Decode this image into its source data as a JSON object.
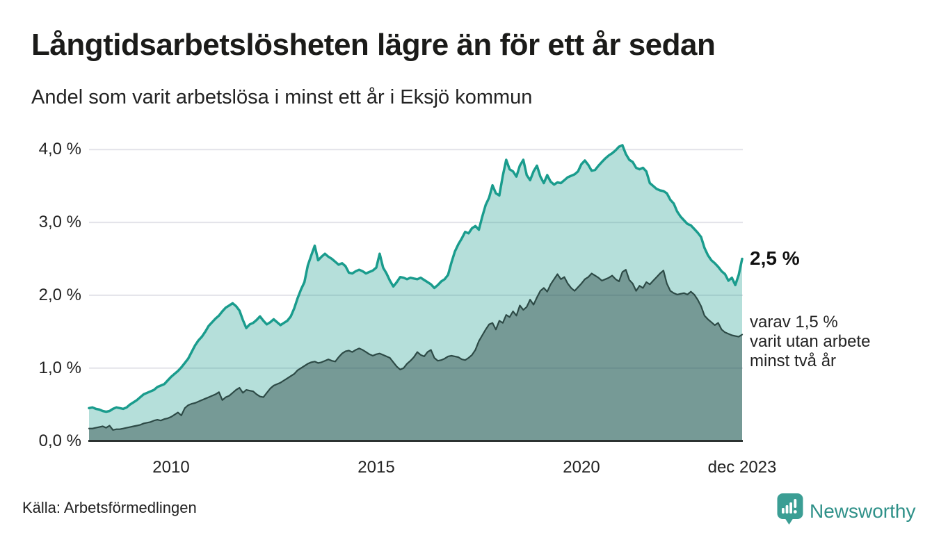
{
  "header": {
    "title": "Långtidsarbetslösheten lägre än för ett år sedan",
    "subtitle": "Andel som varit arbetslösa i minst ett år i Eksjö kommun"
  },
  "chart_data": {
    "type": "area",
    "title": "Långtidsarbetslösheten lägre än för ett år sedan",
    "subtitle": "Andel som varit arbetslösa i minst ett år i Eksjö kommun",
    "x_unit": "month",
    "x_start": "2008-01",
    "x_end": "2023-12",
    "ylim": [
      0,
      4.2
    ],
    "grid": true,
    "y_ticks": [
      {
        "label": "4,0 %",
        "value": 4.0
      },
      {
        "label": "3,0 %",
        "value": 3.0
      },
      {
        "label": "2,0 %",
        "value": 2.0
      },
      {
        "label": "1,0 %",
        "value": 1.0
      },
      {
        "label": "0,0 %",
        "value": 0.0
      }
    ],
    "x_ticks": [
      {
        "label": "2010",
        "month_index": 24
      },
      {
        "label": "2015",
        "month_index": 84
      },
      {
        "label": "2020",
        "month_index": 144
      },
      {
        "label": "dec 2023",
        "month_index": 191
      }
    ],
    "series": [
      {
        "name": "Andel som varit arbetslösa i minst ett år",
        "line_color": "#1a9c8d",
        "fill_color": "rgba(26,156,141,0.32)",
        "line_width": 3.5,
        "values": [
          0.45,
          0.46,
          0.44,
          0.43,
          0.41,
          0.4,
          0.41,
          0.44,
          0.46,
          0.45,
          0.44,
          0.46,
          0.5,
          0.53,
          0.56,
          0.6,
          0.64,
          0.66,
          0.68,
          0.7,
          0.74,
          0.76,
          0.78,
          0.83,
          0.88,
          0.92,
          0.96,
          1.01,
          1.07,
          1.13,
          1.22,
          1.31,
          1.38,
          1.43,
          1.5,
          1.58,
          1.63,
          1.68,
          1.72,
          1.78,
          1.83,
          1.86,
          1.89,
          1.85,
          1.79,
          1.66,
          1.55,
          1.6,
          1.62,
          1.66,
          1.71,
          1.65,
          1.6,
          1.63,
          1.67,
          1.63,
          1.59,
          1.62,
          1.65,
          1.71,
          1.82,
          1.96,
          2.08,
          2.18,
          2.41,
          2.55,
          2.68,
          2.48,
          2.53,
          2.57,
          2.53,
          2.5,
          2.46,
          2.42,
          2.44,
          2.4,
          2.31,
          2.3,
          2.33,
          2.35,
          2.33,
          2.3,
          2.32,
          2.34,
          2.38,
          2.57,
          2.38,
          2.3,
          2.2,
          2.12,
          2.18,
          2.25,
          2.24,
          2.22,
          2.24,
          2.23,
          2.22,
          2.24,
          2.21,
          2.18,
          2.15,
          2.1,
          2.14,
          2.19,
          2.22,
          2.28,
          2.45,
          2.6,
          2.7,
          2.78,
          2.87,
          2.85,
          2.92,
          2.95,
          2.9,
          3.08,
          3.24,
          3.34,
          3.51,
          3.4,
          3.37,
          3.64,
          3.86,
          3.73,
          3.7,
          3.63,
          3.78,
          3.86,
          3.65,
          3.58,
          3.7,
          3.78,
          3.63,
          3.54,
          3.65,
          3.56,
          3.52,
          3.55,
          3.54,
          3.58,
          3.62,
          3.64,
          3.66,
          3.7,
          3.8,
          3.85,
          3.79,
          3.71,
          3.72,
          3.78,
          3.83,
          3.88,
          3.92,
          3.95,
          3.99,
          4.04,
          4.06,
          3.94,
          3.86,
          3.83,
          3.75,
          3.73,
          3.75,
          3.7,
          3.54,
          3.5,
          3.46,
          3.44,
          3.43,
          3.4,
          3.31,
          3.26,
          3.15,
          3.08,
          3.03,
          2.98,
          2.96,
          2.91,
          2.86,
          2.8,
          2.65,
          2.55,
          2.48,
          2.44,
          2.39,
          2.33,
          2.29,
          2.2,
          2.24,
          2.14,
          2.28,
          2.5
        ]
      },
      {
        "name": "varav arbetslösa minst två år",
        "line_color": "#2d4a46",
        "fill_color": "rgba(44,73,69,0.46)",
        "line_width": 2.2,
        "values": [
          0.17,
          0.17,
          0.18,
          0.19,
          0.2,
          0.18,
          0.21,
          0.15,
          0.16,
          0.16,
          0.17,
          0.18,
          0.19,
          0.2,
          0.21,
          0.22,
          0.24,
          0.25,
          0.26,
          0.28,
          0.29,
          0.28,
          0.3,
          0.31,
          0.33,
          0.36,
          0.39,
          0.35,
          0.45,
          0.49,
          0.51,
          0.52,
          0.54,
          0.56,
          0.58,
          0.6,
          0.62,
          0.64,
          0.67,
          0.56,
          0.6,
          0.62,
          0.66,
          0.7,
          0.73,
          0.66,
          0.7,
          0.69,
          0.68,
          0.64,
          0.61,
          0.6,
          0.66,
          0.72,
          0.76,
          0.78,
          0.8,
          0.83,
          0.86,
          0.89,
          0.92,
          0.97,
          1.0,
          1.03,
          1.06,
          1.08,
          1.09,
          1.07,
          1.08,
          1.1,
          1.12,
          1.1,
          1.09,
          1.15,
          1.2,
          1.23,
          1.24,
          1.22,
          1.25,
          1.27,
          1.25,
          1.22,
          1.19,
          1.17,
          1.19,
          1.2,
          1.18,
          1.16,
          1.14,
          1.08,
          1.02,
          0.98,
          1.0,
          1.06,
          1.1,
          1.15,
          1.22,
          1.18,
          1.16,
          1.22,
          1.25,
          1.14,
          1.1,
          1.11,
          1.13,
          1.16,
          1.17,
          1.16,
          1.15,
          1.12,
          1.11,
          1.14,
          1.18,
          1.25,
          1.37,
          1.45,
          1.53,
          1.6,
          1.62,
          1.53,
          1.65,
          1.62,
          1.73,
          1.7,
          1.78,
          1.72,
          1.86,
          1.8,
          1.84,
          1.94,
          1.87,
          1.97,
          2.06,
          2.1,
          2.05,
          2.15,
          2.22,
          2.29,
          2.22,
          2.25,
          2.16,
          2.1,
          2.06,
          2.11,
          2.16,
          2.22,
          2.25,
          2.3,
          2.27,
          2.24,
          2.2,
          2.22,
          2.24,
          2.27,
          2.22,
          2.19,
          2.32,
          2.35,
          2.21,
          2.16,
          2.06,
          2.13,
          2.1,
          2.18,
          2.15,
          2.2,
          2.25,
          2.3,
          2.34,
          2.16,
          2.06,
          2.03,
          2.01,
          2.02,
          2.03,
          2.01,
          2.05,
          2.01,
          1.94,
          1.85,
          1.72,
          1.67,
          1.63,
          1.59,
          1.62,
          1.53,
          1.49,
          1.47,
          1.45,
          1.44,
          1.43,
          1.46
        ]
      }
    ],
    "end_labels": {
      "primary": "2,5 %",
      "secondary_lines": [
        "varav 1,5 %",
        "varit utan arbete",
        "minst två år"
      ]
    },
    "legend_position": "none"
  },
  "footer": {
    "source": "Källa: Arbetsförmedlingen",
    "brand": "Newsworthy"
  },
  "colors": {
    "accent_teal": "#1a9c8d",
    "dark_slate": "#2d4a46",
    "gridline": "#e3e3e9",
    "axis_line": "#2c3331",
    "brand_teal": "#3b9e94",
    "text": "#232323"
  }
}
